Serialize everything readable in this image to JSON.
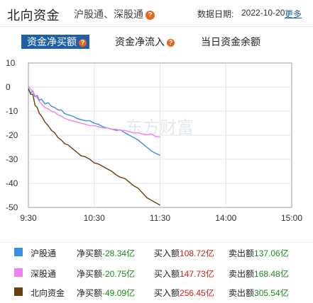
{
  "header": {
    "title": "北向资金",
    "subtitle": "沪股通、深股通",
    "date_label": "数据日期:",
    "date_value": "2022-10-20",
    "more": "更多"
  },
  "tabs": [
    {
      "label": "资金净买额",
      "help": "?"
    },
    {
      "label": "资金净流入",
      "help": "?"
    },
    {
      "label": "当日资金余额"
    }
  ],
  "colors": {
    "hgt": "#3a8ee6",
    "sgt": "#f07ff0",
    "north": "#6b3e12",
    "green": "#1b8a1b",
    "red": "#d0201a",
    "tab_active": "#1e5fa8"
  },
  "chart_data": {
    "type": "line",
    "y_ticks": [
      "10",
      "0",
      "-10",
      "-20",
      "-30",
      "-40",
      "-50"
    ],
    "x_ticks": [
      "9:30",
      "10:30",
      "11:30",
      "14:00",
      "15:00"
    ],
    "ylim": [
      -50,
      10
    ],
    "x_range_minutes": [
      0,
      240
    ],
    "grid": true,
    "watermark": "东方财富",
    "series": [
      {
        "name": "沪股通",
        "color": "#3a8ee6",
        "points": [
          [
            0,
            -1.0
          ],
          [
            2,
            -2.5
          ],
          [
            4,
            -1.5
          ],
          [
            6,
            -4.0
          ],
          [
            8,
            -3.5
          ],
          [
            10,
            -5.5
          ],
          [
            12,
            -5.0
          ],
          [
            15,
            -7.0
          ],
          [
            18,
            -6.5
          ],
          [
            21,
            -8.0
          ],
          [
            24,
            -8.5
          ],
          [
            27,
            -9.5
          ],
          [
            30,
            -9.5
          ],
          [
            33,
            -11.0
          ],
          [
            36,
            -11.5
          ],
          [
            40,
            -12.0
          ],
          [
            44,
            -13.0
          ],
          [
            48,
            -13.5
          ],
          [
            52,
            -14.0
          ],
          [
            56,
            -14.0
          ],
          [
            60,
            -15.0
          ],
          [
            64,
            -15.5
          ],
          [
            68,
            -16.5
          ],
          [
            72,
            -17.0
          ],
          [
            76,
            -17.5
          ],
          [
            80,
            -18.0
          ],
          [
            84,
            -17.8
          ],
          [
            88,
            -19.0
          ],
          [
            92,
            -20.0
          ],
          [
            96,
            -21.0
          ],
          [
            100,
            -22.0
          ],
          [
            104,
            -23.5
          ],
          [
            108,
            -25.0
          ],
          [
            112,
            -26.5
          ],
          [
            116,
            -27.5
          ],
          [
            120,
            -28.34
          ]
        ]
      },
      {
        "name": "深股通",
        "color": "#f07ff0",
        "points": [
          [
            0,
            0.5
          ],
          [
            2,
            -1.0
          ],
          [
            4,
            -1.5
          ],
          [
            6,
            -3.5
          ],
          [
            8,
            -4.5
          ],
          [
            10,
            -6.0
          ],
          [
            12,
            -7.0
          ],
          [
            15,
            -8.5
          ],
          [
            18,
            -9.0
          ],
          [
            21,
            -10.0
          ],
          [
            24,
            -10.5
          ],
          [
            27,
            -11.5
          ],
          [
            30,
            -12.0
          ],
          [
            33,
            -13.0
          ],
          [
            36,
            -13.5
          ],
          [
            40,
            -14.0
          ],
          [
            44,
            -14.5
          ],
          [
            48,
            -15.0
          ],
          [
            52,
            -15.5
          ],
          [
            56,
            -16.0
          ],
          [
            60,
            -16.0
          ],
          [
            64,
            -16.5
          ],
          [
            68,
            -17.0
          ],
          [
            72,
            -17.0
          ],
          [
            76,
            -17.5
          ],
          [
            80,
            -17.5
          ],
          [
            84,
            -18.0
          ],
          [
            88,
            -18.0
          ],
          [
            92,
            -18.5
          ],
          [
            96,
            -19.0
          ],
          [
            100,
            -19.0
          ],
          [
            104,
            -19.5
          ],
          [
            108,
            -19.8
          ],
          [
            112,
            -19.5
          ],
          [
            116,
            -20.5
          ],
          [
            120,
            -20.75
          ]
        ]
      },
      {
        "name": "北向资金",
        "color": "#6b3e12",
        "points": [
          [
            0,
            -0.5
          ],
          [
            2,
            -3.0
          ],
          [
            4,
            -3.0
          ],
          [
            6,
            -7.5
          ],
          [
            8,
            -8.5
          ],
          [
            10,
            -11.0
          ],
          [
            12,
            -12.0
          ],
          [
            15,
            -14.5
          ],
          [
            18,
            -16.0
          ],
          [
            21,
            -18.0
          ],
          [
            24,
            -19.0
          ],
          [
            27,
            -21.0
          ],
          [
            30,
            -22.0
          ],
          [
            33,
            -23.5
          ],
          [
            36,
            -24.0
          ],
          [
            40,
            -25.5
          ],
          [
            44,
            -27.0
          ],
          [
            48,
            -28.5
          ],
          [
            52,
            -29.0
          ],
          [
            56,
            -30.0
          ],
          [
            60,
            -31.5
          ],
          [
            64,
            -32.0
          ],
          [
            68,
            -33.0
          ],
          [
            72,
            -34.0
          ],
          [
            76,
            -35.0
          ],
          [
            80,
            -36.5
          ],
          [
            84,
            -37.5
          ],
          [
            88,
            -38.0
          ],
          [
            92,
            -39.5
          ],
          [
            96,
            -41.0
          ],
          [
            100,
            -42.0
          ],
          [
            104,
            -44.0
          ],
          [
            108,
            -46.0
          ],
          [
            112,
            -47.0
          ],
          [
            116,
            -48.0
          ],
          [
            120,
            -49.09
          ]
        ]
      }
    ]
  },
  "legend": [
    {
      "name": "沪股通",
      "color": "#3a8ee6",
      "net_label": "净买额",
      "net_value": "-28.34亿",
      "buy_label": "买入额",
      "buy_value": "108.72亿",
      "sell_label": "卖出额",
      "sell_value": "137.06亿"
    },
    {
      "name": "深股通",
      "color": "#f07ff0",
      "net_label": "净买额",
      "net_value": "-20.75亿",
      "buy_label": "买入额",
      "buy_value": "147.73亿",
      "sell_label": "卖出额",
      "sell_value": "168.48亿"
    },
    {
      "name": "北向资金",
      "color": "#6b3e12",
      "net_label": "净买额",
      "net_value": "-49.09亿",
      "buy_label": "买入额",
      "buy_value": "256.45亿",
      "sell_label": "卖出额",
      "sell_value": "305.54亿"
    }
  ]
}
